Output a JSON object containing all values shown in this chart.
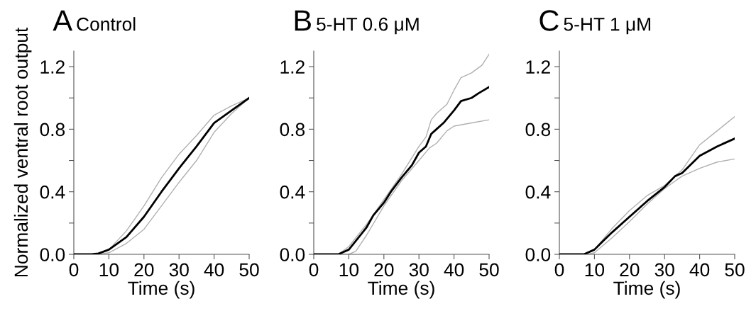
{
  "chart_data": [
    {
      "type": "line",
      "title": "A",
      "subtitle": "Control",
      "xlabel": "Time (s)",
      "ylabel": "Normalized ventral root output",
      "xlim": [
        0,
        50
      ],
      "ylim": [
        0,
        1.3
      ],
      "xticks": [
        0,
        10,
        20,
        30,
        40,
        50
      ],
      "yticks": [
        {
          "value": 0,
          "label": "0.0"
        },
        {
          "value": 0.2,
          "label": null
        },
        {
          "value": 0.4,
          "label": "0.4"
        },
        {
          "value": 0.6,
          "label": null
        },
        {
          "value": 0.8,
          "label": "0.8"
        },
        {
          "value": 1.0,
          "label": null
        },
        {
          "value": 1.2,
          "label": "1.2"
        }
      ],
      "grid": false,
      "legend": false,
      "series": [
        {
          "color": "#000000",
          "x": [
            0,
            5,
            7,
            10,
            15,
            20,
            25,
            30,
            35,
            40,
            45,
            50
          ],
          "values": [
            0,
            0,
            0.005,
            0.03,
            0.11,
            0.24,
            0.4,
            0.55,
            0.69,
            0.84,
            0.92,
            1.0
          ]
        },
        {
          "color": "#b0b0b0",
          "x": [
            7,
            10,
            15,
            20,
            25,
            30,
            35,
            40,
            45,
            50
          ],
          "values": [
            0.005,
            0.03,
            0.15,
            0.31,
            0.49,
            0.64,
            0.76,
            0.89,
            0.95,
            1.0
          ]
        },
        {
          "color": "#b0b0b0",
          "x": [
            0,
            7,
            10,
            15,
            20,
            25,
            30,
            35,
            40,
            45,
            50
          ],
          "values": [
            0,
            0,
            0.01,
            0.07,
            0.16,
            0.31,
            0.46,
            0.6,
            0.78,
            0.9,
            1.0
          ]
        }
      ]
    },
    {
      "type": "line",
      "title": "B",
      "subtitle": "5-HT 0.6 μM",
      "xlabel": "Time (s)",
      "xlim": [
        0,
        50
      ],
      "ylim": [
        0,
        1.3
      ],
      "xticks": [
        0,
        10,
        20,
        30,
        40,
        50
      ],
      "yticks": [
        {
          "value": 0,
          "label": "0.0"
        },
        {
          "value": 0.2,
          "label": null
        },
        {
          "value": 0.4,
          "label": "0.4"
        },
        {
          "value": 0.6,
          "label": null
        },
        {
          "value": 0.8,
          "label": "0.8"
        },
        {
          "value": 1.0,
          "label": null
        },
        {
          "value": 1.2,
          "label": "1.2"
        }
      ],
      "grid": false,
      "legend": false,
      "series": [
        {
          "color": "#000000",
          "x": [
            0,
            7,
            8,
            10,
            15,
            17,
            20,
            22,
            25,
            28,
            30,
            32,
            33.5,
            35,
            37,
            40,
            42,
            45,
            47,
            50
          ],
          "values": [
            0,
            0,
            0.01,
            0.03,
            0.17,
            0.25,
            0.33,
            0.4,
            0.49,
            0.57,
            0.65,
            0.69,
            0.77,
            0.8,
            0.84,
            0.92,
            0.98,
            1.0,
            1.03,
            1.07
          ]
        },
        {
          "color": "#b0b0b0",
          "x": [
            0,
            7,
            10,
            15,
            20,
            25,
            30,
            32,
            33.5,
            35,
            38,
            40,
            42,
            45,
            48,
            50
          ],
          "values": [
            0,
            0,
            0.05,
            0.19,
            0.35,
            0.51,
            0.69,
            0.75,
            0.86,
            0.9,
            0.96,
            1.05,
            1.13,
            1.16,
            1.21,
            1.28
          ]
        },
        {
          "color": "#b0b0b0",
          "x": [
            0,
            10,
            12,
            15,
            20,
            25,
            30,
            33,
            35,
            38,
            40,
            45,
            50
          ],
          "values": [
            0,
            0,
            0.02,
            0.12,
            0.31,
            0.47,
            0.6,
            0.68,
            0.71,
            0.79,
            0.82,
            0.84,
            0.86
          ]
        }
      ]
    },
    {
      "type": "line",
      "title": "C",
      "subtitle": "5-HT 1 μM",
      "xlabel": "Time (s)",
      "xlim": [
        0,
        50
      ],
      "ylim": [
        0,
        1.3
      ],
      "xticks": [
        0,
        10,
        20,
        30,
        40,
        50
      ],
      "yticks": [
        {
          "value": 0,
          "label": "0.0"
        },
        {
          "value": 0.2,
          "label": null
        },
        {
          "value": 0.4,
          "label": "0.4"
        },
        {
          "value": 0.6,
          "label": null
        },
        {
          "value": 0.8,
          "label": "0.8"
        },
        {
          "value": 1.0,
          "label": null
        },
        {
          "value": 1.2,
          "label": "1.2"
        }
      ],
      "grid": false,
      "legend": false,
      "series": [
        {
          "color": "#000000",
          "x": [
            0,
            7,
            10,
            12,
            15,
            20,
            25,
            30,
            33,
            35,
            40,
            45,
            50
          ],
          "values": [
            0,
            0,
            0.03,
            0.075,
            0.14,
            0.24,
            0.34,
            0.43,
            0.5,
            0.52,
            0.63,
            0.69,
            0.74
          ]
        },
        {
          "color": "#b0b0b0",
          "x": [
            0,
            7,
            10,
            15,
            20,
            25,
            30,
            35,
            40,
            45,
            50
          ],
          "values": [
            0,
            0,
            0.03,
            0.165,
            0.28,
            0.375,
            0.44,
            0.54,
            0.7,
            0.79,
            0.88
          ]
        },
        {
          "color": "#b0b0b0",
          "x": [
            0,
            8,
            10,
            15,
            20,
            25,
            30,
            35,
            40,
            45,
            50
          ],
          "values": [
            0,
            0,
            0.01,
            0.105,
            0.21,
            0.32,
            0.42,
            0.5,
            0.55,
            0.59,
            0.61
          ]
        }
      ]
    }
  ]
}
